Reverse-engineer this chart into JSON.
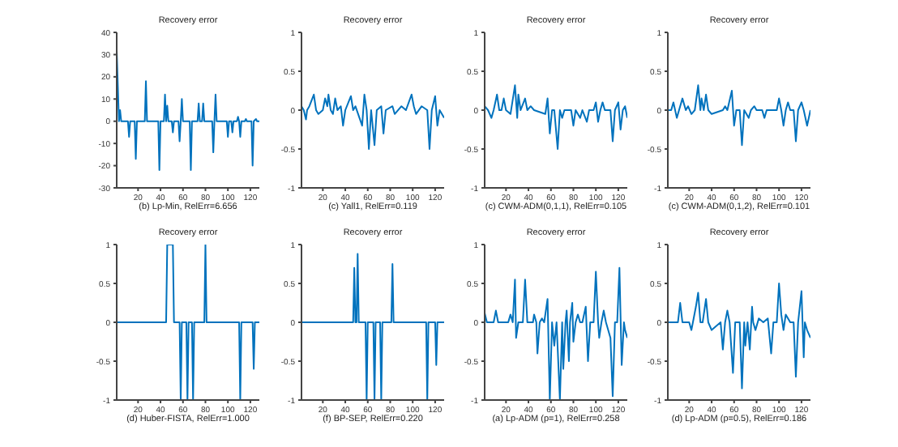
{
  "chart_data": [
    {
      "type": "line",
      "title": "Recovery error",
      "xlabel": "(b) Lp-Min, RelErr=6.656",
      "color": "#0072bd",
      "xlim": [
        1,
        128
      ],
      "xticks": [
        20,
        40,
        60,
        80,
        100,
        120
      ],
      "ylim": [
        -30,
        40
      ],
      "yticks": [
        -30,
        -20,
        -10,
        0,
        10,
        20,
        30,
        40
      ],
      "x": [
        1,
        3,
        4,
        5,
        6,
        11,
        12,
        13,
        17,
        18,
        19,
        26,
        27,
        28,
        38,
        39,
        40,
        43,
        44,
        45,
        46,
        47,
        48,
        50,
        51,
        52,
        56,
        57,
        58,
        59,
        60,
        66,
        67,
        68,
        73,
        74,
        75,
        77,
        78,
        79,
        86,
        87,
        88,
        89,
        90,
        99,
        100,
        101,
        103,
        104,
        105,
        108,
        109,
        110,
        111,
        112,
        115,
        116,
        117,
        121,
        122,
        123,
        125,
        126,
        128
      ],
      "values": [
        32,
        0,
        5,
        0,
        0,
        0,
        -7,
        0,
        0,
        -17,
        0,
        0,
        18,
        0,
        0,
        -22,
        0,
        0,
        12,
        0,
        7,
        0,
        0,
        0,
        -5,
        0,
        0,
        -9,
        0,
        10,
        0,
        0,
        -22,
        0,
        0,
        8,
        0,
        0,
        8,
        0,
        0,
        -14,
        0,
        12,
        0,
        0,
        -7,
        0,
        0,
        -5,
        0,
        0,
        2,
        0,
        -7,
        0,
        0,
        1,
        0,
        0,
        -20,
        0,
        1,
        0,
        0
      ]
    },
    {
      "type": "line",
      "title": "Recovery error",
      "xlabel": "(c) Yall1, RelErr=0.119",
      "color": "#0072bd",
      "xlim": [
        1,
        128
      ],
      "xticks": [
        20,
        40,
        60,
        80,
        100,
        120
      ],
      "ylim": [
        -1,
        1
      ],
      "yticks": [
        -1,
        -0.5,
        0,
        0.5,
        1
      ],
      "x": [
        1,
        3,
        5,
        6,
        8,
        12,
        14,
        16,
        20,
        22,
        24,
        25,
        27,
        29,
        31,
        33,
        36,
        38,
        40,
        45,
        47,
        49,
        55,
        57,
        59,
        61,
        63,
        66,
        68,
        72,
        74,
        76,
        82,
        84,
        90,
        94,
        99,
        101,
        103,
        108,
        113,
        115,
        117,
        120,
        122,
        124,
        126,
        128
      ],
      "values": [
        0.05,
        0,
        -0.12,
        0,
        0.05,
        0.2,
        0,
        -0.05,
        0,
        0.15,
        0.05,
        0.2,
        0,
        -0.05,
        0.15,
        0,
        0.05,
        -0.2,
        0,
        0.18,
        0,
        0.05,
        -0.2,
        0.2,
        0,
        -0.5,
        0,
        -0.45,
        0,
        0.05,
        -0.3,
        0,
        0.05,
        -0.05,
        0.05,
        0,
        0.2,
        0.05,
        -0.05,
        0.05,
        0,
        -0.5,
        0,
        0.18,
        -0.2,
        0,
        -0.05,
        -0.1
      ]
    },
    {
      "type": "line",
      "title": "Recovery error",
      "xlabel": "(c) CWM-ADM(0,1,1), RelErr=0.105",
      "color": "#0072bd",
      "xlim": [
        1,
        128
      ],
      "xticks": [
        20,
        40,
        60,
        80,
        100,
        120
      ],
      "ylim": [
        -1,
        1
      ],
      "yticks": [
        -1,
        -0.5,
        0,
        0.5,
        1
      ],
      "x": [
        1,
        4,
        7,
        9,
        12,
        14,
        16,
        18,
        20,
        24,
        28,
        30,
        31,
        33,
        37,
        39,
        42,
        45,
        55,
        57,
        59,
        61,
        63,
        66,
        68,
        70,
        72,
        78,
        80,
        82,
        86,
        88,
        92,
        94,
        98,
        100,
        102,
        104,
        106,
        108,
        113,
        115,
        117,
        120,
        122,
        124,
        126,
        128
      ],
      "values": [
        0.05,
        0,
        -0.1,
        0,
        0.2,
        0,
        0,
        0.15,
        0,
        -0.05,
        0.32,
        -0.1,
        0.2,
        0,
        0.15,
        0,
        0.05,
        0,
        -0.05,
        0.15,
        -0.3,
        0,
        0,
        -0.5,
        0,
        -0.1,
        0,
        0,
        -0.2,
        0,
        -0.1,
        0,
        -0.15,
        0,
        0,
        0.1,
        -0.15,
        0,
        0.1,
        0,
        0,
        -0.4,
        0,
        0.1,
        -0.25,
        0,
        0.05,
        -0.1
      ]
    },
    {
      "type": "line",
      "title": "Recovery error",
      "xlabel": "(c) CWM-ADM(0,1,2), RelErr=0.101",
      "color": "#0072bd",
      "xlim": [
        1,
        128
      ],
      "xticks": [
        20,
        40,
        60,
        80,
        100,
        120
      ],
      "ylim": [
        -1,
        1
      ],
      "yticks": [
        -1,
        -0.5,
        0,
        0.5,
        1
      ],
      "x": [
        1,
        4,
        6,
        9,
        11,
        14,
        17,
        19,
        22,
        25,
        28,
        30,
        31,
        33,
        35,
        37,
        40,
        50,
        52,
        54,
        58,
        60,
        62,
        65,
        67,
        69,
        73,
        75,
        78,
        80,
        85,
        87,
        89,
        98,
        100,
        102,
        104,
        106,
        108,
        110,
        113,
        115,
        117,
        120,
        122,
        125,
        128
      ],
      "values": [
        0,
        0,
        0.1,
        -0.1,
        0,
        0.15,
        0,
        0.05,
        -0.05,
        0,
        0.32,
        0,
        0.15,
        0,
        0.2,
        0,
        -0.05,
        0,
        0.05,
        0,
        0.25,
        -0.2,
        0,
        0,
        -0.45,
        0,
        -0.1,
        0,
        0.05,
        0,
        0,
        -0.1,
        0,
        0,
        0.15,
        0,
        -0.2,
        0,
        0.1,
        0,
        0,
        -0.4,
        0,
        0.1,
        0,
        -0.2,
        0
      ]
    },
    {
      "type": "line",
      "title": "Recovery error",
      "xlabel": "(d) Huber-FISTA, RelErr=1.000",
      "color": "#0072bd",
      "xlim": [
        1,
        128
      ],
      "xticks": [
        20,
        40,
        60,
        80,
        100,
        120
      ],
      "ylim": [
        -1,
        1
      ],
      "yticks": [
        -1,
        -0.5,
        0,
        0.5,
        1
      ],
      "x": [
        1,
        45,
        46,
        47,
        48,
        49,
        50,
        51,
        52,
        57,
        58,
        59,
        63,
        64,
        65,
        68,
        69,
        70,
        79,
        80,
        81,
        110,
        111,
        112,
        122,
        123,
        124,
        128
      ],
      "values": [
        0,
        0,
        1,
        1,
        1,
        1,
        1,
        1,
        0,
        0,
        -1,
        0,
        0,
        -1,
        0,
        0,
        -1,
        0,
        0,
        1,
        0,
        0,
        -1,
        0,
        0,
        -0.6,
        0,
        0
      ]
    },
    {
      "type": "line",
      "title": "Recovery error",
      "xlabel": "(f) BP-SEP, RelErr=0.220",
      "color": "#0072bd",
      "xlim": [
        1,
        128
      ],
      "xticks": [
        20,
        40,
        60,
        80,
        100,
        120
      ],
      "ylim": [
        -1,
        1
      ],
      "yticks": [
        -1,
        -0.5,
        0,
        0.5,
        1
      ],
      "x": [
        1,
        47,
        48,
        49,
        50,
        51,
        52,
        58,
        59,
        60,
        65,
        66,
        67,
        71,
        72,
        73,
        81,
        82,
        83,
        112,
        113,
        114,
        120,
        121,
        122,
        128
      ],
      "values": [
        0,
        0,
        0.7,
        0,
        0,
        0.88,
        0,
        0,
        -1,
        0,
        0,
        -1,
        0,
        0,
        -1,
        0,
        0,
        0.75,
        0,
        0,
        -1,
        0,
        0,
        -0.55,
        0,
        0
      ]
    },
    {
      "type": "line",
      "title": "Recovery error",
      "xlabel": "(a) Lp-ADM (p=1), RelErr=0.258",
      "color": "#0072bd",
      "xlim": [
        1,
        128
      ],
      "xticks": [
        20,
        40,
        60,
        80,
        100,
        120
      ],
      "ylim": [
        -1,
        1
      ],
      "yticks": [
        -1,
        -0.5,
        0,
        0.5,
        1
      ],
      "x": [
        1,
        3,
        9,
        11,
        13,
        22,
        24,
        26,
        28,
        29,
        31,
        35,
        37,
        39,
        44,
        45,
        47,
        48,
        50,
        52,
        54,
        57,
        59,
        61,
        63,
        65,
        68,
        70,
        71,
        73,
        74,
        76,
        77,
        79,
        80,
        82,
        84,
        86,
        88,
        91,
        93,
        95,
        98,
        100,
        102,
        103,
        105,
        107,
        109,
        113,
        115,
        117,
        119,
        121,
        123,
        125,
        126,
        128
      ],
      "values": [
        0.12,
        0,
        0,
        0.15,
        0,
        0,
        0.1,
        0,
        0.55,
        -0.2,
        0,
        0,
        0.55,
        0,
        0,
        0.1,
        0,
        -0.4,
        0,
        0.05,
        0,
        0.3,
        -1,
        0,
        -0.3,
        0,
        -1,
        0,
        -0.6,
        0,
        0.15,
        -0.5,
        0,
        0.25,
        -0.25,
        0,
        0.1,
        0,
        0,
        0.2,
        -0.5,
        0,
        0,
        0.65,
        0,
        -0.2,
        0,
        0.15,
        0,
        -0.2,
        -0.95,
        0,
        0,
        0.7,
        -0.55,
        0,
        -0.1,
        -0.2
      ]
    },
    {
      "type": "line",
      "title": "Recovery error",
      "xlabel": "(d) Lp-ADM (p=0.5), RelErr=0.186",
      "color": "#0072bd",
      "xlim": [
        1,
        128
      ],
      "xticks": [
        20,
        40,
        60,
        80,
        100,
        120
      ],
      "ylim": [
        -1,
        1
      ],
      "yticks": [
        -1,
        -0.5,
        0,
        0.5,
        1
      ],
      "x": [
        1,
        8,
        10,
        12,
        14,
        18,
        20,
        22,
        24,
        26,
        28,
        30,
        32,
        35,
        37,
        40,
        48,
        50,
        52,
        54,
        56,
        59,
        61,
        65,
        67,
        69,
        70,
        72,
        74,
        76,
        77,
        79,
        82,
        86,
        90,
        93,
        95,
        98,
        100,
        102,
        104,
        106,
        110,
        113,
        115,
        117,
        120,
        122,
        123,
        125,
        128
      ],
      "values": [
        0,
        0,
        0,
        0.25,
        0,
        0,
        0,
        -0.1,
        0.05,
        0.2,
        0.38,
        0,
        0,
        0.3,
        0,
        -0.1,
        0,
        -0.35,
        0,
        0.15,
        0,
        -0.65,
        0,
        0,
        -0.85,
        0,
        -0.3,
        0,
        -0.35,
        0.2,
        0,
        -0.1,
        0.05,
        0,
        0.05,
        -0.4,
        0,
        0,
        0.5,
        0.1,
        -0.1,
        0.1,
        0,
        0,
        -0.7,
        0,
        0.4,
        -0.45,
        0,
        -0.1,
        -0.2
      ]
    }
  ]
}
